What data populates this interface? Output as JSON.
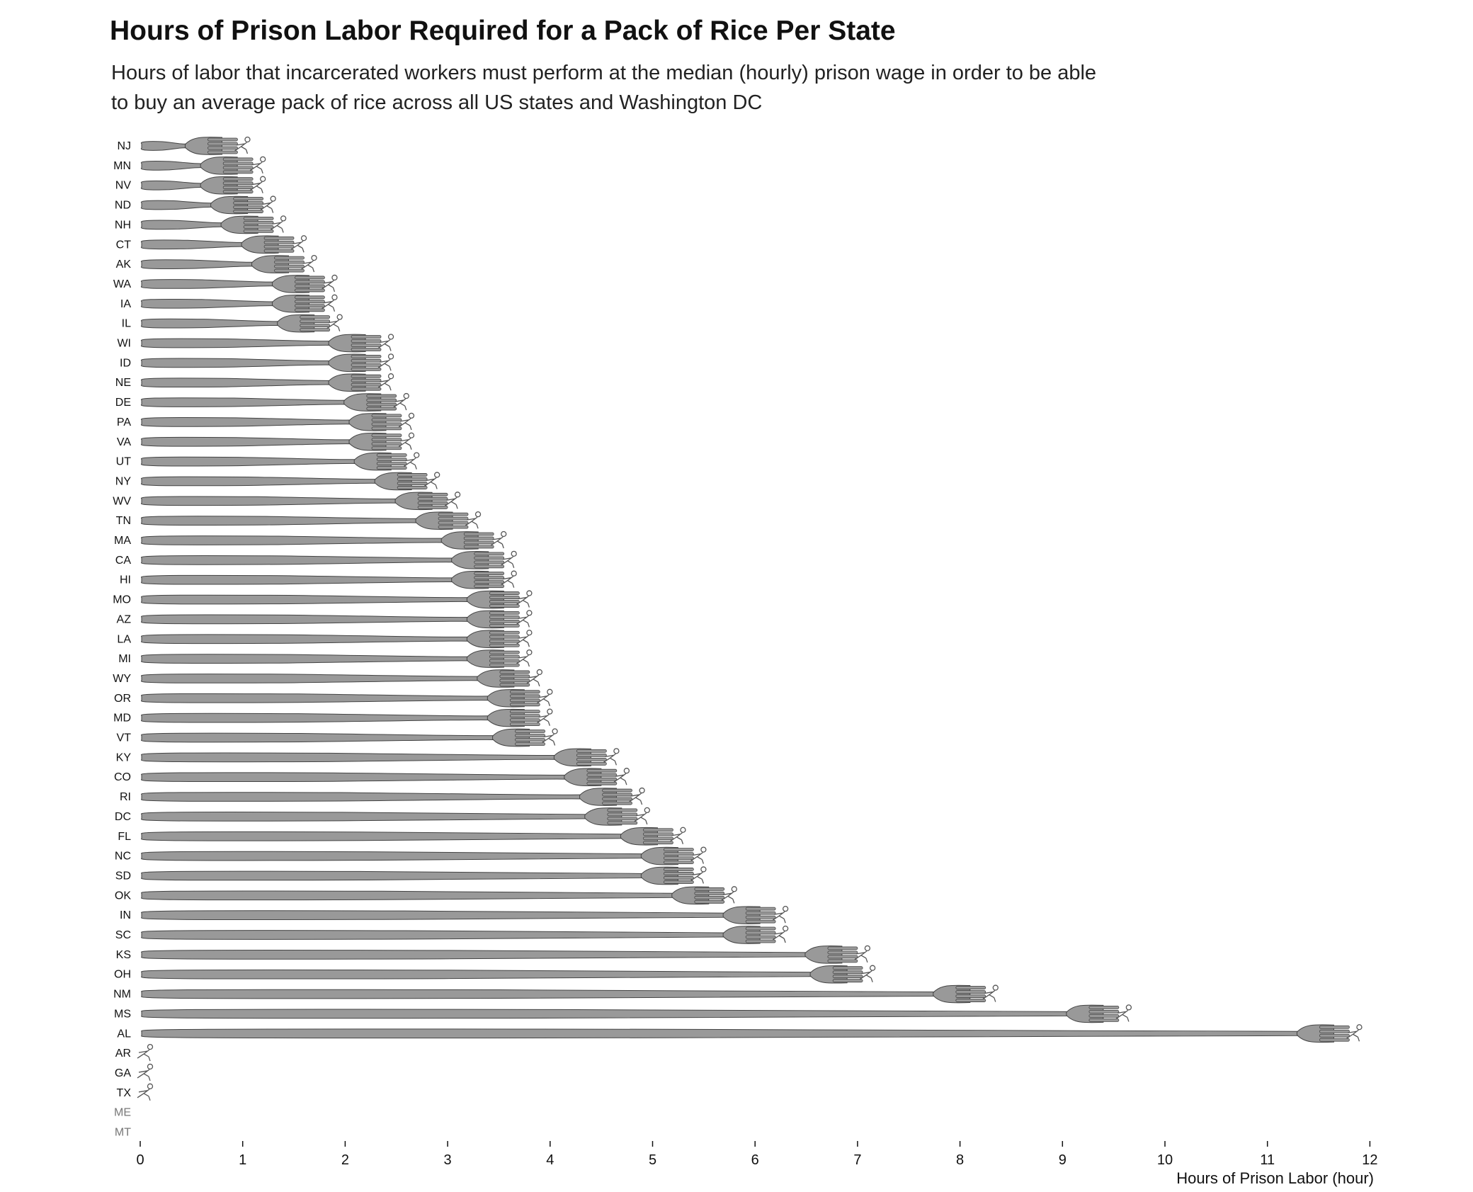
{
  "chart_data": {
    "type": "bar",
    "title": "Hours of Prison Labor Required for a Pack of Rice Per State",
    "subtitle": "Hours of labor that incarcerated workers must perform at the median (hourly) prison wage in order to be able to buy an average pack of rice across all US states and Washington DC",
    "xlabel": "Hours of Prison Labor (hour)",
    "ylabel": "",
    "xlim": [
      0,
      12
    ],
    "x_ticks": [
      "0",
      "1",
      "2",
      "3",
      "4",
      "5",
      "6",
      "7",
      "8",
      "9",
      "10",
      "11",
      "12"
    ],
    "categories": [
      "NJ",
      "MN",
      "NV",
      "ND",
      "NH",
      "CT",
      "AK",
      "WA",
      "IA",
      "IL",
      "WI",
      "ID",
      "NE",
      "DE",
      "PA",
      "VA",
      "UT",
      "NY",
      "WV",
      "TN",
      "MA",
      "CA",
      "HI",
      "MO",
      "AZ",
      "LA",
      "MI",
      "WY",
      "OR",
      "MD",
      "VT",
      "KY",
      "CO",
      "RI",
      "DC",
      "FL",
      "NC",
      "SD",
      "OK",
      "IN",
      "SC",
      "KS",
      "OH",
      "NM",
      "MS",
      "AL",
      "AR",
      "GA",
      "TX",
      "ME",
      "MT"
    ],
    "values": [
      0.95,
      1.1,
      1.1,
      1.2,
      1.3,
      1.5,
      1.6,
      1.8,
      1.8,
      1.85,
      2.35,
      2.35,
      2.35,
      2.5,
      2.55,
      2.55,
      2.6,
      2.8,
      3.0,
      3.2,
      3.45,
      3.55,
      3.55,
      3.7,
      3.7,
      3.7,
      3.7,
      3.8,
      3.9,
      3.9,
      3.95,
      4.55,
      4.65,
      4.8,
      4.85,
      5.2,
      5.4,
      5.4,
      5.7,
      6.2,
      6.2,
      7.0,
      7.05,
      8.25,
      9.55,
      11.8,
      0,
      0,
      0,
      null,
      null
    ],
    "no_data": [
      "ME",
      "MT"
    ],
    "grid": false,
    "legend": "none",
    "colors": {
      "bar": "#999999",
      "outline": "#444444",
      "text": "#111111",
      "muted": "#777777"
    },
    "mark_icon": "fork-with-figure-icon"
  }
}
